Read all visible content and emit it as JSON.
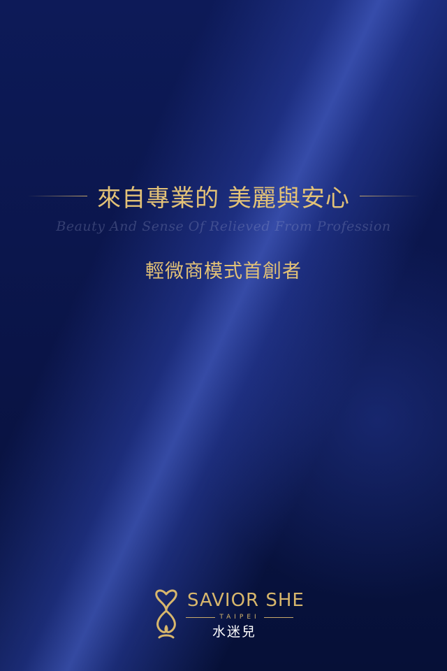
{
  "hero": {
    "headline": "來自專業的 美麗與安心",
    "subline_en": "Beauty And Sense Of Relieved  From Profession",
    "tagline": "輕微商模式首創者"
  },
  "brand": {
    "name": "SAVIOR SHE",
    "city": "TAIPEI",
    "name_cn": "水迷兒",
    "logo_icon": "double-heart-infinity-logo-icon"
  },
  "colors": {
    "background": "#0b1646",
    "gold": "#e3c277",
    "white": "#ffffff"
  }
}
